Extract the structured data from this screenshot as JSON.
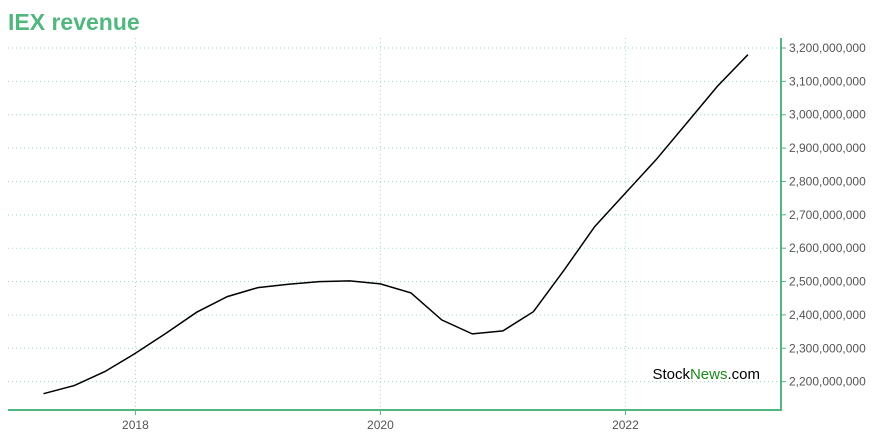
{
  "chart_data": {
    "type": "line",
    "title": "IEX revenue",
    "x": [
      2017.25,
      2017.5,
      2017.75,
      2018.0,
      2018.25,
      2018.5,
      2018.75,
      2019.0,
      2019.25,
      2019.5,
      2019.75,
      2020.0,
      2020.25,
      2020.5,
      2020.75,
      2021.0,
      2021.25,
      2021.5,
      2021.75,
      2022.0,
      2022.25,
      2022.5,
      2022.75,
      2023.0
    ],
    "series": [
      {
        "color": "#000000",
        "values": [
          2164000000,
          2188000000,
          2230000000,
          2285000000,
          2345000000,
          2408000000,
          2455000000,
          2482000000,
          2492000000,
          2500000000,
          2502000000,
          2493000000,
          2466000000,
          2385000000,
          2343000000,
          2352000000,
          2410000000,
          2535000000,
          2665000000,
          2765000000,
          2865000000,
          2975000000,
          3085000000,
          3180000000
        ]
      }
    ],
    "xlim": [
      2016.96,
      2023.27
    ],
    "xticks": [
      2018,
      2020,
      2022
    ],
    "ylim": [
      2115000000,
      3230000000
    ],
    "yticks": [
      {
        "value": 2200000000,
        "label": "2,200,000,000"
      },
      {
        "value": 2300000000,
        "label": "2,300,000,000"
      },
      {
        "value": 2400000000,
        "label": "2,400,000,000"
      },
      {
        "value": 2500000000,
        "label": "2,500,000,000"
      },
      {
        "value": 2600000000,
        "label": "2,600,000,000"
      },
      {
        "value": 2700000000,
        "label": "2,700,000,000"
      },
      {
        "value": 2800000000,
        "label": "2,800,000,000"
      },
      {
        "value": 2900000000,
        "label": "2,900,000,000"
      },
      {
        "value": 3000000000,
        "label": "3,000,000,000"
      },
      {
        "value": 3100000000,
        "label": "3,100,000,000"
      },
      {
        "value": 3200000000,
        "label": "3,200,000,000"
      }
    ],
    "grid": true,
    "watermark": [
      "Stock",
      "News",
      ".com"
    ]
  }
}
